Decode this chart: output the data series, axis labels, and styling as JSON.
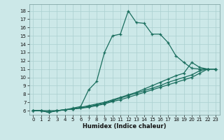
{
  "xlabel": "Humidex (Indice chaleur)",
  "bg_color": "#cce8e8",
  "grid_color": "#aacfcf",
  "line_color": "#1a6e5e",
  "xlim": [
    -0.5,
    23.5
  ],
  "ylim": [
    5.5,
    18.8
  ],
  "xticks": [
    0,
    1,
    2,
    3,
    4,
    5,
    6,
    7,
    8,
    9,
    10,
    11,
    12,
    13,
    14,
    15,
    16,
    17,
    18,
    19,
    20,
    21,
    22,
    23
  ],
  "yticks": [
    6,
    7,
    8,
    9,
    10,
    11,
    12,
    13,
    14,
    15,
    16,
    17,
    18
  ],
  "line1_x": [
    0,
    1,
    2,
    3,
    4,
    5,
    6,
    7,
    8,
    9,
    10,
    11,
    12,
    13,
    14,
    15,
    16,
    17,
    18,
    19,
    20,
    21,
    22,
    23
  ],
  "line1_y": [
    6.0,
    6.0,
    6.0,
    6.0,
    6.1,
    6.3,
    6.5,
    8.5,
    9.5,
    13.0,
    15.0,
    15.2,
    18.0,
    16.6,
    16.5,
    15.2,
    15.2,
    14.2,
    12.6,
    11.8,
    11.1,
    11.0,
    11.0,
    11.0
  ],
  "line2_x": [
    0,
    1,
    2,
    3,
    4,
    5,
    6,
    7,
    8,
    9,
    10,
    11,
    12,
    13,
    14,
    15,
    16,
    17,
    18,
    19,
    20,
    21,
    22,
    23
  ],
  "line2_y": [
    6.0,
    6.0,
    5.8,
    6.0,
    6.1,
    6.2,
    6.4,
    6.6,
    6.8,
    7.0,
    7.3,
    7.6,
    7.9,
    8.2,
    8.6,
    9.0,
    9.4,
    9.8,
    10.2,
    10.5,
    11.8,
    11.2,
    11.0,
    11.0
  ],
  "line3_x": [
    0,
    1,
    2,
    3,
    4,
    5,
    6,
    7,
    8,
    9,
    10,
    11,
    12,
    13,
    14,
    15,
    16,
    17,
    18,
    19,
    20,
    21,
    22,
    23
  ],
  "line3_y": [
    6.0,
    6.0,
    5.8,
    6.0,
    6.1,
    6.2,
    6.3,
    6.5,
    6.7,
    6.9,
    7.2,
    7.5,
    7.8,
    8.1,
    8.4,
    8.7,
    9.0,
    9.4,
    9.7,
    10.0,
    10.3,
    10.8,
    11.0,
    11.0
  ],
  "line4_x": [
    0,
    1,
    2,
    3,
    4,
    5,
    6,
    7,
    8,
    9,
    10,
    11,
    12,
    13,
    14,
    15,
    16,
    17,
    18,
    19,
    20,
    21,
    22,
    23
  ],
  "line4_y": [
    6.0,
    6.0,
    5.8,
    6.0,
    6.1,
    6.2,
    6.3,
    6.4,
    6.6,
    6.8,
    7.1,
    7.3,
    7.6,
    7.9,
    8.2,
    8.5,
    8.8,
    9.1,
    9.4,
    9.7,
    10.0,
    10.5,
    11.0,
    11.0
  ]
}
